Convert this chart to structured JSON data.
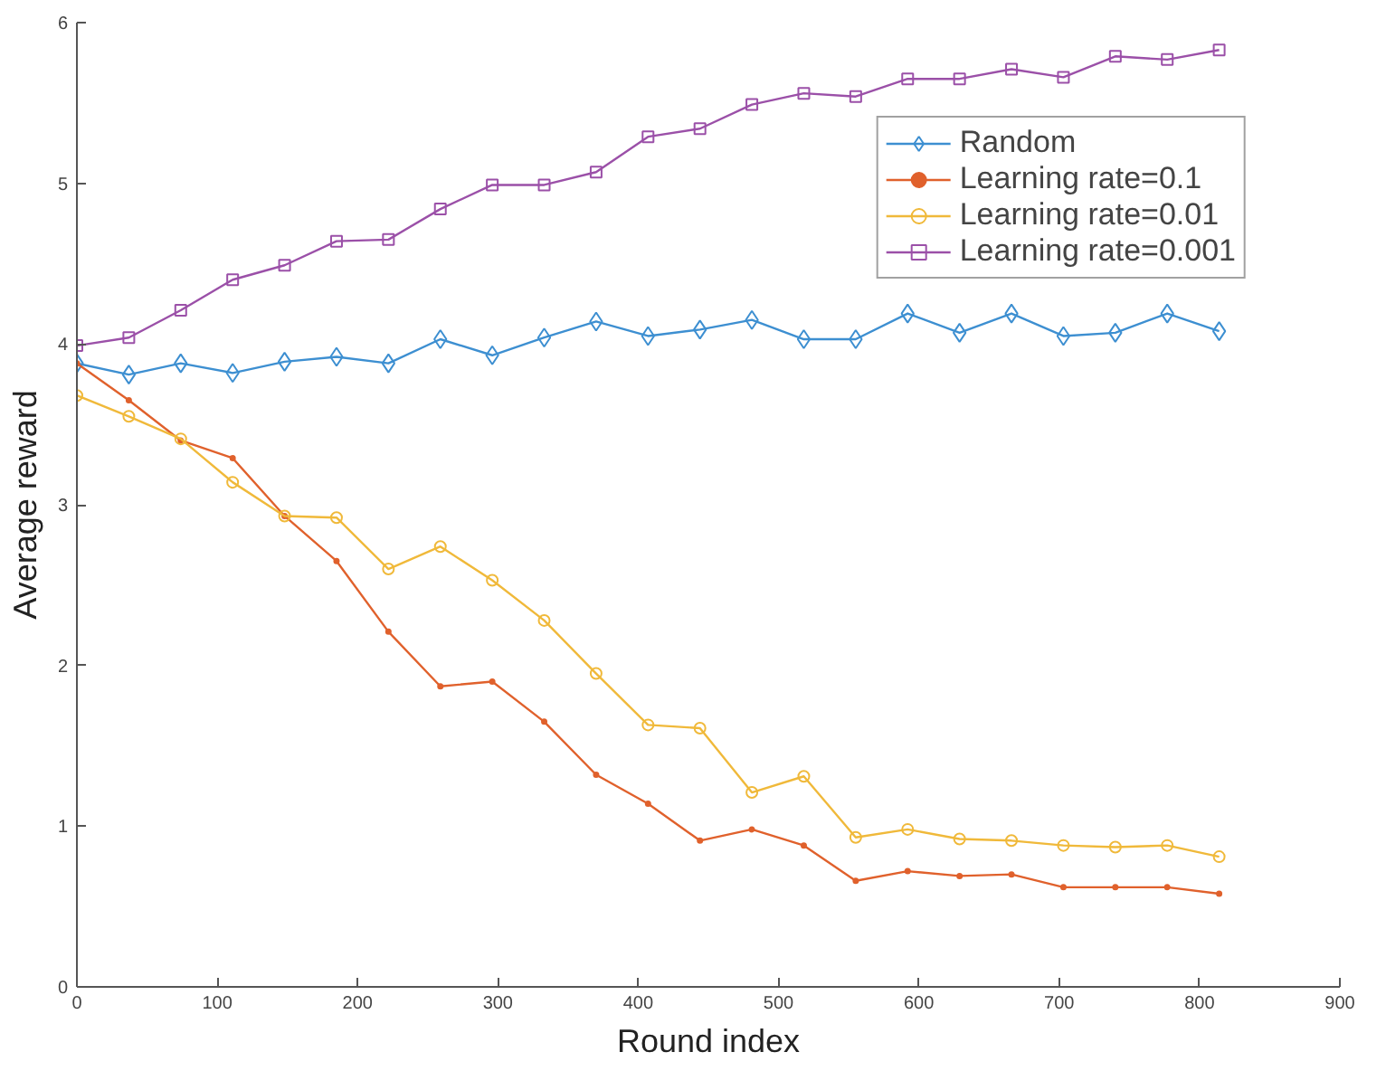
{
  "chart_data": {
    "type": "line",
    "xlabel": "Round index",
    "ylabel": "Average reward",
    "x": [
      0,
      37,
      74,
      111,
      148,
      185,
      222,
      259,
      296,
      333,
      370,
      407,
      444,
      481,
      518,
      555,
      592,
      629,
      666,
      703,
      740,
      777,
      814
    ],
    "series": [
      {
        "name": "Random",
        "color": "#3d8fd1",
        "marker": "diamond",
        "values": [
          3.88,
          3.81,
          3.88,
          3.82,
          3.89,
          3.92,
          3.88,
          4.03,
          3.93,
          4.04,
          4.14,
          4.05,
          4.09,
          4.15,
          4.03,
          4.03,
          4.19,
          4.07,
          4.19,
          4.05,
          4.07,
          4.19,
          4.08
        ]
      },
      {
        "name": "Learning rate=0.1",
        "color": "#e0612c",
        "marker": "none",
        "values": [
          3.88,
          3.65,
          3.4,
          3.29,
          2.93,
          2.65,
          2.21,
          1.87,
          1.9,
          1.65,
          1.32,
          1.14,
          0.91,
          0.98,
          0.88,
          0.66,
          0.72,
          0.69,
          0.7,
          0.62,
          0.62,
          0.62,
          0.58
        ]
      },
      {
        "name": "Learning rate=0.01",
        "color": "#f0b93a",
        "marker": "circle",
        "values": [
          3.68,
          3.55,
          3.41,
          3.14,
          2.93,
          2.92,
          2.6,
          2.74,
          2.53,
          2.28,
          1.95,
          1.63,
          1.61,
          1.21,
          1.31,
          0.93,
          0.98,
          0.92,
          0.91,
          0.88,
          0.87,
          0.88,
          0.81
        ]
      },
      {
        "name": "Learning rate=0.001",
        "color": "#9b50a8",
        "marker": "square",
        "values": [
          3.99,
          4.04,
          4.21,
          4.4,
          4.49,
          4.64,
          4.65,
          4.84,
          4.99,
          4.99,
          5.07,
          5.29,
          5.34,
          5.49,
          5.56,
          5.54,
          5.65,
          5.65,
          5.71,
          5.66,
          5.79,
          5.77,
          5.83
        ]
      }
    ],
    "xlim": [
      0,
      900
    ],
    "xticks": [
      0,
      100,
      200,
      300,
      400,
      500,
      600,
      700,
      800,
      900
    ],
    "ylim": [
      0,
      6
    ],
    "yticks": [
      0,
      1,
      2,
      3,
      4,
      5,
      6
    ],
    "grid": false,
    "legend": "top right",
    "line_style": "solid"
  }
}
